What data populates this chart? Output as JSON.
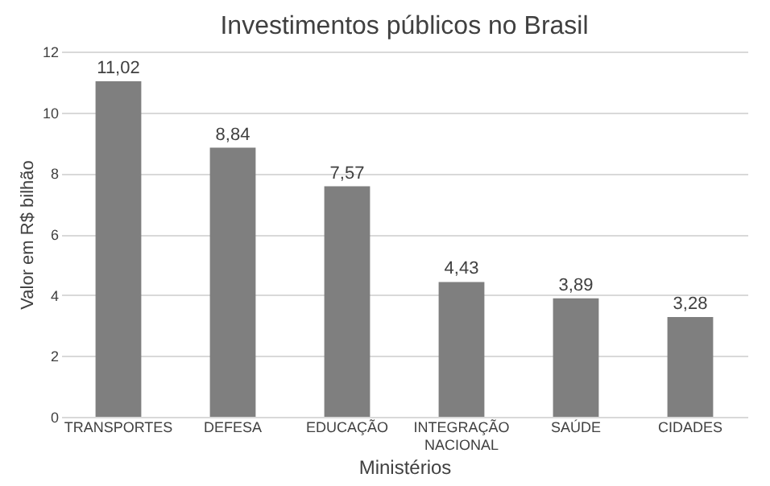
{
  "chart_data": {
    "type": "bar",
    "title": "Investimentos públicos no Brasil",
    "xlabel": "Ministérios",
    "ylabel": "Valor em R$ bilhão",
    "categories": [
      "TRANSPORTES",
      "DEFESA",
      "EDUCAÇÃO",
      "INTEGRAÇÃO NACIONAL",
      "SAÚDE",
      "CIDADES"
    ],
    "values": [
      11.02,
      8.84,
      7.57,
      4.43,
      3.89,
      3.28
    ],
    "value_labels": [
      "11,02",
      "8,84",
      "7,57",
      "4,43",
      "3,89",
      "3,28"
    ],
    "color": "#7f7f7f",
    "ylim": [
      0,
      12
    ],
    "yticks": [
      0,
      2,
      4,
      6,
      8,
      10,
      12
    ],
    "grid": "y"
  }
}
